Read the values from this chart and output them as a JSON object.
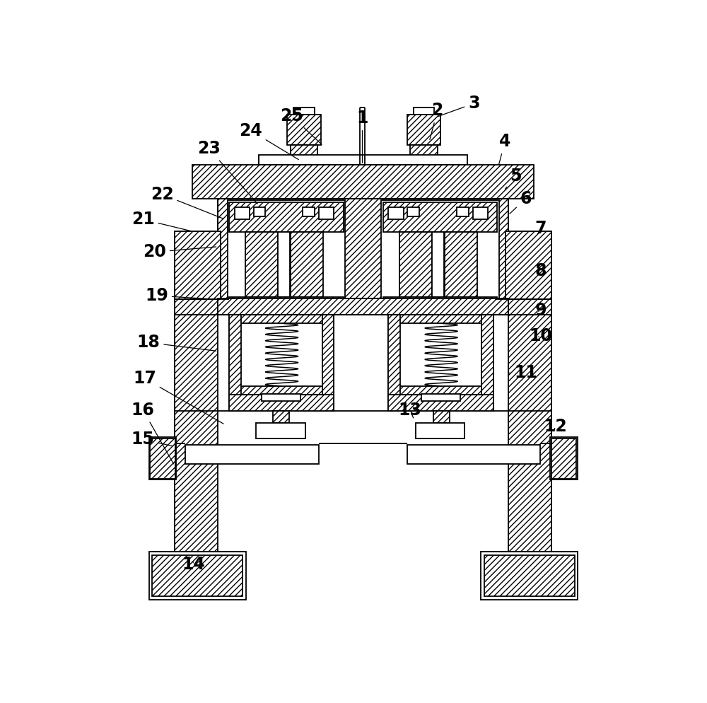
{
  "bg_color": "#ffffff",
  "lw": 1.3,
  "hatch": "////",
  "fig_w": 10.0,
  "fig_h": 9.94,
  "labels_info": [
    [
      1,
      500,
      148,
      500,
      62
    ],
    [
      2,
      623,
      105,
      638,
      48
    ],
    [
      3,
      636,
      60,
      705,
      35
    ],
    [
      4,
      750,
      150,
      762,
      105
    ],
    [
      5,
      760,
      195,
      782,
      168
    ],
    [
      6,
      768,
      240,
      800,
      210
    ],
    [
      7,
      820,
      278,
      828,
      265
    ],
    [
      8,
      820,
      345,
      828,
      342
    ],
    [
      9,
      820,
      418,
      828,
      415
    ],
    [
      10,
      820,
      465,
      828,
      462
    ],
    [
      11,
      768,
      530,
      800,
      530
    ],
    [
      12,
      850,
      640,
      855,
      628
    ],
    [
      13,
      595,
      616,
      588,
      598
    ],
    [
      14,
      188,
      873,
      190,
      882
    ],
    [
      15,
      155,
      665,
      97,
      652
    ],
    [
      16,
      155,
      700,
      97,
      598
    ],
    [
      17,
      248,
      625,
      100,
      540
    ],
    [
      18,
      235,
      490,
      107,
      474
    ],
    [
      19,
      235,
      395,
      122,
      388
    ],
    [
      20,
      235,
      298,
      118,
      308
    ],
    [
      21,
      188,
      270,
      97,
      248
    ],
    [
      22,
      248,
      248,
      132,
      202
    ],
    [
      23,
      310,
      222,
      218,
      118
    ],
    [
      24,
      386,
      140,
      295,
      85
    ],
    [
      25,
      428,
      113,
      370,
      58
    ]
  ]
}
